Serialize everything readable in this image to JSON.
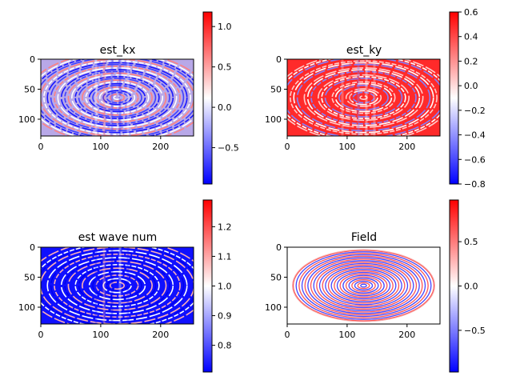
{
  "colors": {
    "cmap_low": "#0000ff",
    "cmap_mid": "#ffffff",
    "cmap_high": "#ff0000",
    "background": "#ffffff",
    "axis": "#000000"
  },
  "chart_data": [
    {
      "type": "heatmap",
      "title": "est_kx",
      "pattern": "concentric elliptical stripes, noisy",
      "xlim": [
        0,
        255
      ],
      "ylim": [
        128,
        0
      ],
      "xticks": [
        0,
        100,
        200
      ],
      "yticks": [
        0,
        50,
        100
      ],
      "colormap": "bwr",
      "colorbar": {
        "vmin": -0.95,
        "vmax": 1.18,
        "ticks": [
          -0.5,
          0.0,
          0.5,
          1.0
        ],
        "tick_labels": [
          "−0.5",
          "0.0",
          "0.5",
          "1.0"
        ]
      }
    },
    {
      "type": "heatmap",
      "title": "est_ky",
      "pattern": "concentric elliptical stripes, mostly high values",
      "xlim": [
        0,
        255
      ],
      "ylim": [
        128,
        0
      ],
      "xticks": [
        0,
        100,
        200
      ],
      "yticks": [
        0,
        50,
        100
      ],
      "colormap": "bwr",
      "colorbar": {
        "vmin": -0.8,
        "vmax": 0.6,
        "ticks": [
          -0.8,
          -0.6,
          -0.4,
          -0.2,
          0.0,
          0.2,
          0.4,
          0.6
        ],
        "tick_labels": [
          "−0.8",
          "−0.6",
          "−0.4",
          "−0.2",
          "0.0",
          "0.2",
          "0.4",
          "0.6"
        ]
      }
    },
    {
      "type": "heatmap",
      "title": "est wave num",
      "pattern": "concentric elliptical stripes, mostly low values",
      "xlim": [
        0,
        255
      ],
      "ylim": [
        128,
        0
      ],
      "xticks": [
        0,
        100,
        200
      ],
      "yticks": [
        0,
        50,
        100
      ],
      "colormap": "bwr",
      "colorbar": {
        "vmin": 0.71,
        "vmax": 1.29,
        "ticks": [
          0.8,
          0.9,
          1.0,
          1.1,
          1.2
        ],
        "tick_labels": [
          "0.8",
          "0.9",
          "1.0",
          "1.1",
          "1.2"
        ]
      }
    },
    {
      "type": "heatmap",
      "title": "Field",
      "pattern": "concentric elliptical rings inside ellipse, white outside",
      "xlim": [
        0,
        255
      ],
      "ylim": [
        128,
        0
      ],
      "xticks": [
        0,
        100,
        200
      ],
      "yticks": [
        0,
        50,
        100
      ],
      "colormap": "bwr",
      "colorbar": {
        "vmin": -0.97,
        "vmax": 0.97,
        "ticks": [
          -0.5,
          0.0,
          0.5
        ],
        "tick_labels": [
          "−0.5",
          "0.0",
          "0.5"
        ]
      }
    }
  ]
}
